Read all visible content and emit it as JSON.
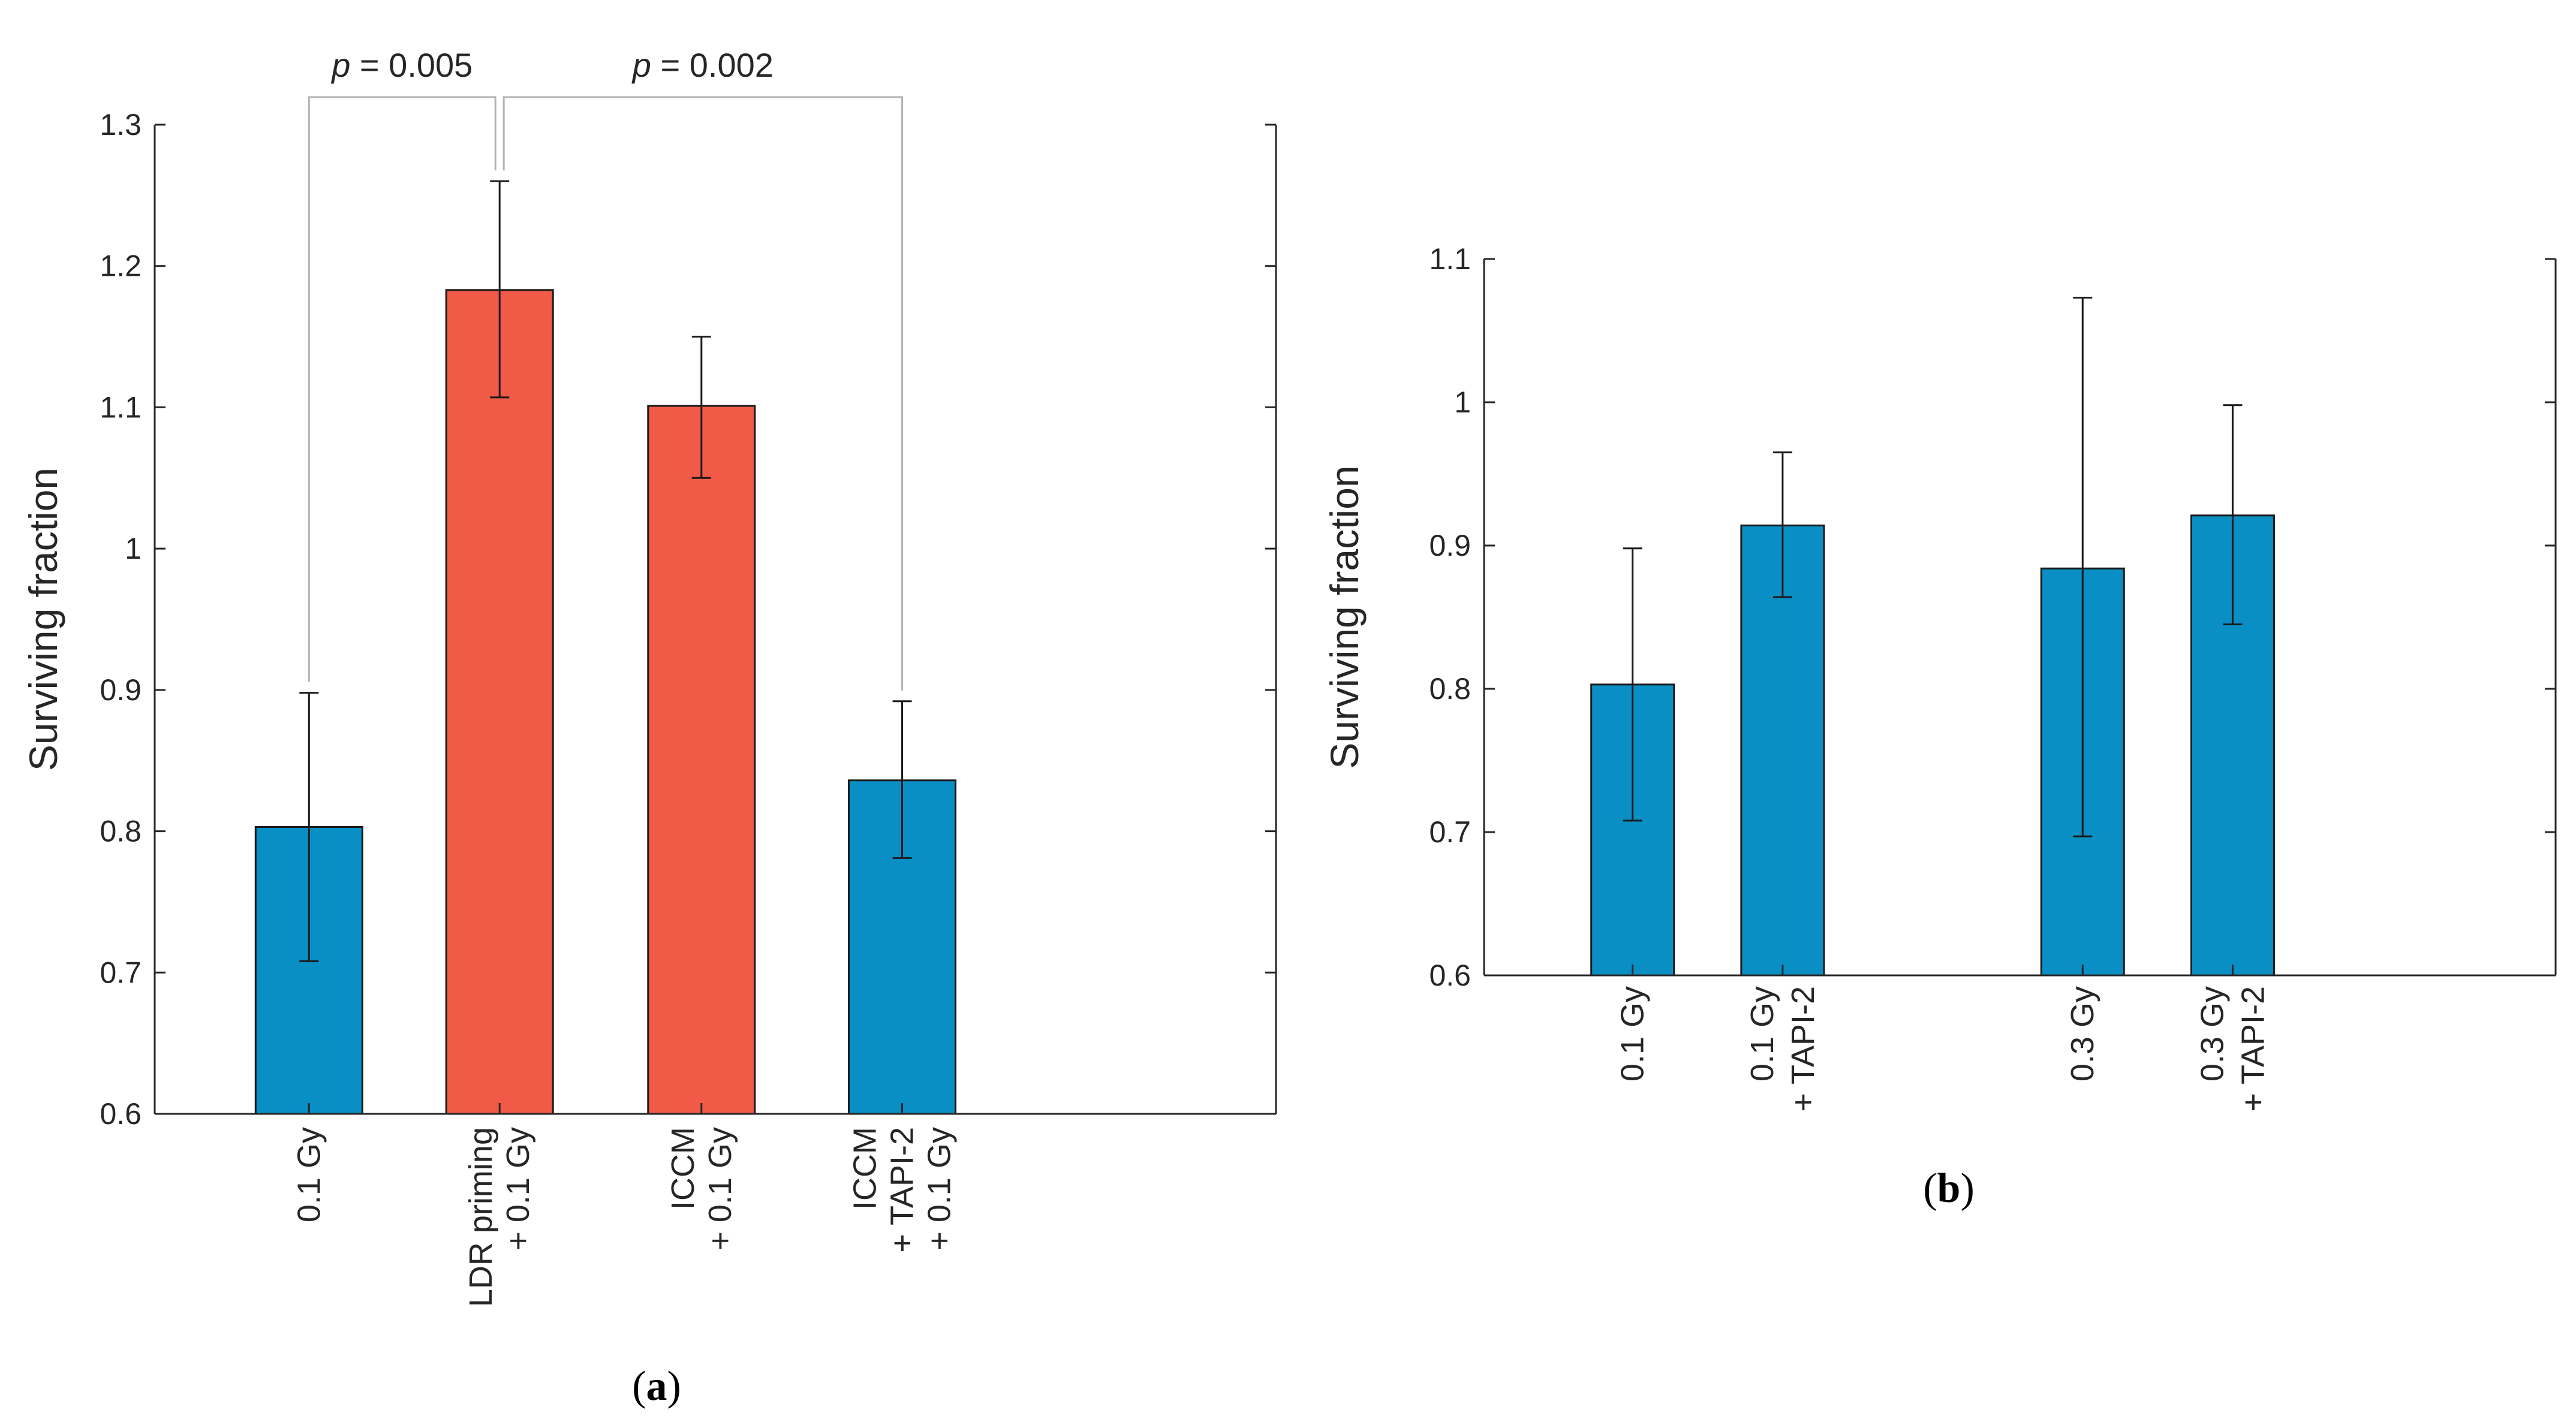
{
  "chart_data": [
    {
      "type": "bar",
      "panel_label": "a",
      "title": "",
      "xlabel": "",
      "ylabel": "Surviving fraction",
      "ylim": [
        0.6,
        1.3
      ],
      "yticks": [
        0.6,
        0.7,
        0.8,
        0.9,
        1,
        1.1,
        1.2,
        1.3
      ],
      "ytick_labels": [
        "0.6",
        "0.7",
        "0.8",
        "0.9",
        "1",
        "1.1",
        "1.2",
        "1.3"
      ],
      "grid": false,
      "bars": [
        {
          "label_lines": [
            "0.1 Gy"
          ],
          "value": 0.803,
          "err_low": 0.708,
          "err_high": 0.898,
          "color": "#0a8fc4"
        },
        {
          "label_lines": [
            "LDR priming",
            "+ 0.1 Gy"
          ],
          "value": 1.183,
          "err_low": 1.107,
          "err_high": 1.26,
          "color": "#f05a47"
        },
        {
          "label_lines": [
            "ICCM",
            "+ 0.1 Gy"
          ],
          "value": 1.101,
          "err_low": 1.05,
          "err_high": 1.15,
          "color": "#f05a47"
        },
        {
          "label_lines": [
            "ICCM",
            "+ TAPI-2",
            "+ 0.1 Gy"
          ],
          "value": 0.836,
          "err_low": 0.781,
          "err_high": 0.892,
          "color": "#0a8fc4"
        }
      ],
      "significance": [
        {
          "from": 0,
          "to": 1,
          "p_symbol": "p",
          "p_text": " = 0.005"
        },
        {
          "from": 1,
          "to": 3,
          "p_symbol": "p",
          "p_text": " = 0.002"
        }
      ]
    },
    {
      "type": "bar",
      "panel_label": "b",
      "title": "",
      "xlabel": "",
      "ylabel": "Surviving fraction",
      "ylim": [
        0.6,
        1.1
      ],
      "yticks": [
        0.6,
        0.7,
        0.8,
        0.9,
        1,
        1.1
      ],
      "ytick_labels": [
        "0.6",
        "0.7",
        "0.8",
        "0.9",
        "1",
        "1.1"
      ],
      "grid": false,
      "bars": [
        {
          "label_lines": [
            "0.1 Gy"
          ],
          "value": 0.803,
          "err_low": 0.708,
          "err_high": 0.898,
          "color": "#0a8fc4"
        },
        {
          "label_lines": [
            "0.1 Gy",
            "+ TAPI-2"
          ],
          "value": 0.914,
          "err_low": 0.864,
          "err_high": 0.965,
          "color": "#0a8fc4"
        },
        {
          "label_lines": [
            "0.3 Gy"
          ],
          "value": 0.884,
          "err_low": 0.697,
          "err_high": 1.073,
          "color": "#0a8fc4"
        },
        {
          "label_lines": [
            "0.3 Gy",
            "+ TAPI-2"
          ],
          "value": 0.921,
          "err_low": 0.845,
          "err_high": 0.998,
          "color": "#0a8fc4"
        }
      ]
    }
  ]
}
